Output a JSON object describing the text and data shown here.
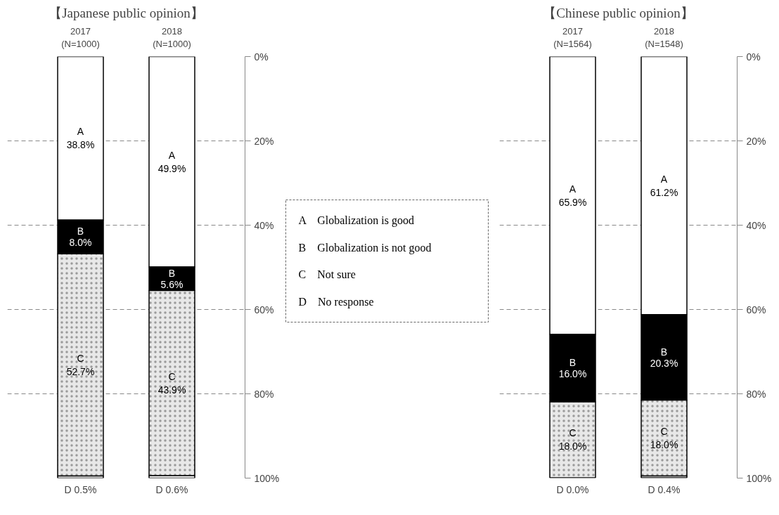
{
  "chart_data": [
    {
      "type": "bar",
      "title": "【Japanese public opinion】",
      "stacked": true,
      "categories": [
        "2017\n(N=1000)",
        "2018\n(N=1000)"
      ],
      "series": [
        {
          "name": "A",
          "color": "#ffffff",
          "values": [
            38.8,
            49.9
          ],
          "value_labels": [
            "38.8%",
            "49.9%"
          ]
        },
        {
          "name": "B",
          "color": "#000000",
          "values": [
            8.0,
            5.6
          ],
          "value_labels": [
            "8.0%",
            "5.6%"
          ]
        },
        {
          "name": "C",
          "color": "#e8e8e8",
          "values": [
            52.7,
            43.9
          ],
          "value_labels": [
            "52.7%",
            "43.9%"
          ]
        },
        {
          "name": "D",
          "color": "#ffffff",
          "values": [
            0.5,
            0.6
          ],
          "value_labels": [
            "0.5%",
            "0.6%"
          ]
        }
      ],
      "ylim": [
        100,
        0
      ],
      "yticks": [
        {
          "value": 0,
          "label": "0%"
        },
        {
          "value": 20,
          "label": "20%"
        },
        {
          "value": 40,
          "label": "40%"
        },
        {
          "value": 60,
          "label": "60%"
        },
        {
          "value": 80,
          "label": "80%"
        },
        {
          "value": 100,
          "label": "100%"
        }
      ],
      "grid": "y",
      "legend": false
    },
    {
      "type": "other",
      "annotations": [
        "A　Globalization is good",
        "B　Globalization is not good",
        "C　Not sure",
        "D　No response"
      ]
    },
    {
      "type": "bar",
      "title": "【Chinese public opinion】",
      "stacked": true,
      "categories": [
        "2017\n(N=1564)",
        "2018\n(N=1548)"
      ],
      "series": [
        {
          "name": "A",
          "color": "#ffffff",
          "values": [
            65.9,
            61.2
          ],
          "value_labels": [
            "65.9%",
            "61.2%"
          ]
        },
        {
          "name": "B",
          "color": "#000000",
          "values": [
            16.0,
            20.3
          ],
          "value_labels": [
            "16.0%",
            "20.3%"
          ]
        },
        {
          "name": "C",
          "color": "#e8e8e8",
          "values": [
            18.0,
            18.0
          ],
          "value_labels": [
            "18.0%",
            "18.0%"
          ]
        },
        {
          "name": "D",
          "color": "#ffffff",
          "values": [
            0.0,
            0.4
          ],
          "value_labels": [
            "0.0%",
            "0.4%"
          ]
        }
      ],
      "ylim": [
        100,
        0
      ],
      "yticks": [
        {
          "value": 0,
          "label": "0%"
        },
        {
          "value": 20,
          "label": "20%"
        },
        {
          "value": 40,
          "label": "40%"
        },
        {
          "value": 60,
          "label": "60%"
        },
        {
          "value": 80,
          "label": "80%"
        },
        {
          "value": 100,
          "label": "100%"
        }
      ],
      "grid": "y",
      "legend": false
    }
  ]
}
